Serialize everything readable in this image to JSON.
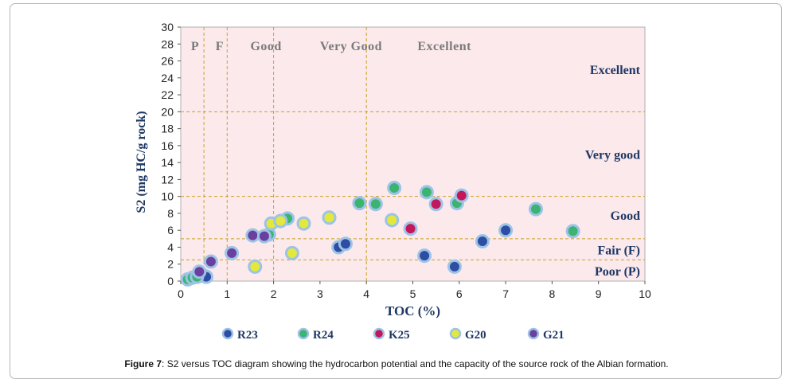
{
  "caption": {
    "label": "Figure 7",
    "text": ": S2 versus TOC diagram showing the hydrocarbon potential and the capacity of the source rock of the Albian formation."
  },
  "colors": {
    "plot_background": "#fbe9ec",
    "guide_line": "#c9a227",
    "zone_label_top": "#7a7a7a",
    "zone_label_right": "#1f3864",
    "axis_label": "#1f3864",
    "marker_ring": "#9dc3e6"
  },
  "chart_data": {
    "type": "scatter",
    "xlabel": "TOC (%)",
    "ylabel": "S2 (mg HC/g rock)",
    "xlim": [
      0,
      10
    ],
    "ylim": [
      0,
      30
    ],
    "x_ticks": [
      "0",
      "1",
      "2",
      "3",
      "4",
      "5",
      "6",
      "7",
      "8",
      "9",
      "10"
    ],
    "y_ticks": [
      "0",
      "2",
      "4",
      "6",
      "8",
      "10",
      "12",
      "14",
      "16",
      "18",
      "20",
      "22",
      "24",
      "26",
      "28",
      "30"
    ],
    "grid": false,
    "legend_position": "bottom",
    "vertical_thresholds": [
      0.5,
      1,
      2,
      4
    ],
    "horizontal_thresholds": [
      2.5,
      5,
      10,
      20
    ],
    "top_zone_labels": [
      {
        "text": "P",
        "x": 0.22
      },
      {
        "text": "F",
        "x": 0.75
      },
      {
        "text": "Good",
        "x": 1.5
      },
      {
        "text": "Very Good",
        "x": 3.0
      },
      {
        "text": "Excellent",
        "x": 5.1
      }
    ],
    "right_zone_labels": [
      {
        "text": "Excellent",
        "y": 25.0
      },
      {
        "text": "Very good",
        "y": 15.0
      },
      {
        "text": "Good",
        "y": 7.8
      },
      {
        "text": "Fair (F)",
        "y": 3.7
      },
      {
        "text": "Poor (P)",
        "y": 1.2
      }
    ],
    "series": [
      {
        "name": "R23",
        "color": "#2e4ea3",
        "points": [
          [
            0.45,
            0.8
          ],
          [
            0.5,
            0.6
          ],
          [
            0.55,
            0.5
          ],
          [
            3.4,
            4.0
          ],
          [
            3.55,
            4.4
          ],
          [
            5.25,
            3.0
          ],
          [
            5.9,
            1.7
          ],
          [
            6.5,
            4.7
          ],
          [
            7.0,
            6.0
          ]
        ]
      },
      {
        "name": "R24",
        "color": "#3cb371",
        "points": [
          [
            0.15,
            0.2
          ],
          [
            0.25,
            0.4
          ],
          [
            0.35,
            0.5
          ],
          [
            1.9,
            5.5
          ],
          [
            2.3,
            7.4
          ],
          [
            3.85,
            9.2
          ],
          [
            4.2,
            9.1
          ],
          [
            4.6,
            11.0
          ],
          [
            5.3,
            10.5
          ],
          [
            5.95,
            9.2
          ],
          [
            7.65,
            8.5
          ],
          [
            8.45,
            5.9
          ]
        ]
      },
      {
        "name": "K25",
        "color": "#c2185b",
        "points": [
          [
            4.95,
            6.2
          ],
          [
            5.5,
            9.1
          ],
          [
            6.05,
            10.1
          ]
        ]
      },
      {
        "name": "G20",
        "color": "#e3e83c",
        "points": [
          [
            1.6,
            1.7
          ],
          [
            1.95,
            6.8
          ],
          [
            2.15,
            7.1
          ],
          [
            2.4,
            3.3
          ],
          [
            2.65,
            6.8
          ],
          [
            3.2,
            7.5
          ],
          [
            4.55,
            7.2
          ]
        ]
      },
      {
        "name": "G21",
        "color": "#6b3fa0",
        "points": [
          [
            0.4,
            1.1
          ],
          [
            0.65,
            2.3
          ],
          [
            1.1,
            3.3
          ],
          [
            1.55,
            5.4
          ],
          [
            1.8,
            5.3
          ]
        ]
      }
    ]
  }
}
